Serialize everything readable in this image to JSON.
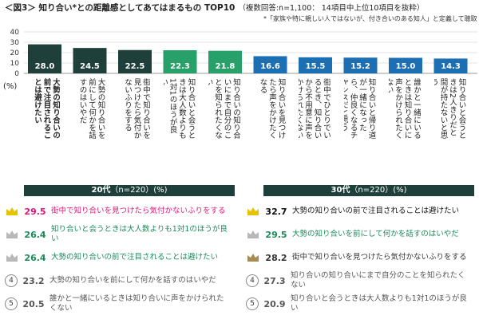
{
  "chart_data": {
    "type": "bar",
    "title": "＜図3＞ 知り合い*との距離感としてあてはまるもの TOP10",
    "subtitle": "（複数回答:n=1,100： 14項目中上位10項目を抜粋）",
    "note": "*「家族や特に親しい人ではないが、付き合いのある知人」と定義して聴取",
    "ylabel": "(%)",
    "ylim": [
      0,
      40
    ],
    "yticks": [
      "0",
      "10",
      "20",
      "30",
      "40"
    ],
    "categories": [
      "大勢の知り合いの前で注目されることは避けたい",
      "大勢の知り合いを前にして何かを話すのはいやだ",
      "街中で知り合いを見つけたら気付かないふりをする",
      "知り合いと会うときは大人数よりも1対1のほうが良い",
      "知り合いの知り合いにまで自分のことを知られたくない",
      "知り合いを見つけたら声をかけたくなる",
      "街中でひとりでいるとき、知り合いから不用意に声をかけられたくない",
      "知り合いと帰り道が一緒になったら、仲良くなるチャンスだと思う",
      "誰かと一緒にいるときは知り合いに声をかけられたくない",
      "知り合いと会うときは2人きりだと間が持たないと思う"
    ],
    "values": [
      28.0,
      24.5,
      22.5,
      22.3,
      21.8,
      16.6,
      15.5,
      15.2,
      15.0,
      14.3
    ],
    "value_labels": [
      "28.0",
      "24.5",
      "22.5",
      "22.3",
      "21.8",
      "16.6",
      "15.5",
      "15.2",
      "15.0",
      "14.3"
    ],
    "colors": [
      "#1f3f3a",
      "#1f3f3a",
      "#1f3f3a",
      "#27a06a",
      "#27a06a",
      "#1c6fb3",
      "#1c6fb3",
      "#1c6fb3",
      "#1c6fb3",
      "#1c6fb3"
    ]
  },
  "panels": {
    "left": {
      "title": "20代",
      "n": "（n=220）(%)",
      "rows": [
        {
          "rank": "1",
          "value": "29.5",
          "label": "街中で知り合いを見つけたら気付かないふりをする",
          "color": "#e0157a"
        },
        {
          "rank": "2",
          "value": "26.4",
          "label": "知り合いと会うときは大人数よりも1対1のほうが良い",
          "color": "#1b8a5a"
        },
        {
          "rank": "2",
          "value": "26.4",
          "label": "大勢の知り合いの前で注目されることは避けたい",
          "color": "#1b8a5a"
        },
        {
          "rank": "4",
          "value": "23.2",
          "label": "大勢の知り合いを前にして何かを話すのはいやだ",
          "color": "#555555"
        },
        {
          "rank": "5",
          "value": "20.5",
          "label": "誰かと一緒にいるときは知り合いに声をかけられたくない",
          "color": "#555555"
        }
      ]
    },
    "right": {
      "title": "30代",
      "n": "（n=220）(%)",
      "rows": [
        {
          "rank": "1",
          "value": "32.7",
          "label": "大勢の知り合いの前で注目されることは避けたい",
          "color": "#111111"
        },
        {
          "rank": "2",
          "value": "29.5",
          "label": "大勢の知り合いを前にして何かを話すのはいやだ",
          "color": "#1b8a5a"
        },
        {
          "rank": "3",
          "value": "28.2",
          "label": "街中で知り合いを見つけたら気付かないふりをする",
          "color": "#333333"
        },
        {
          "rank": "4",
          "value": "27.3",
          "label": "知り合いの知り合いにまで自分のことを知られたくない",
          "color": "#555555"
        },
        {
          "rank": "5",
          "value": "20.9",
          "label": "知り合いと会うときは大人数よりも1対1のほうが良い",
          "color": "#555555"
        }
      ]
    }
  }
}
